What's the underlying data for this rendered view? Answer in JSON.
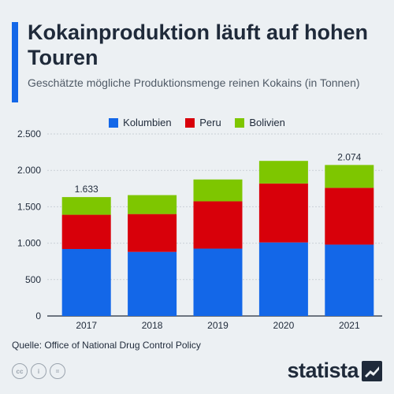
{
  "header": {
    "title": "Kokainproduktion läuft auf hohen Touren",
    "subtitle": "Geschätzte mögliche Produktionsmenge reinen Kokains (in Tonnen)"
  },
  "colors": {
    "accent": "#1367e8",
    "kolumbien": "#1367e8",
    "peru": "#d8000a",
    "bolivien": "#7ec600"
  },
  "chart_data": {
    "type": "bar",
    "stacked": true,
    "categories": [
      "2017",
      "2018",
      "2019",
      "2020",
      "2021"
    ],
    "series": [
      {
        "name": "Kolumbien",
        "color": "#1367e8",
        "values": [
          920,
          880,
          925,
          1010,
          980
        ]
      },
      {
        "name": "Peru",
        "color": "#d8000a",
        "values": [
          470,
          520,
          650,
          810,
          780
        ]
      },
      {
        "name": "Bolivien",
        "color": "#7ec600",
        "values": [
          243,
          260,
          300,
          310,
          314
        ]
      }
    ],
    "data_labels": [
      "1.633",
      "",
      "",
      "",
      "2.074"
    ],
    "ylim": [
      0,
      2500
    ],
    "yticks": [
      0,
      500,
      1000,
      1500,
      2000,
      2500
    ],
    "ytick_labels": [
      "0",
      "500",
      "1.000",
      "1.500",
      "2.000",
      "2.500"
    ],
    "grid": true,
    "legend_position": "top"
  },
  "legend": [
    {
      "label": "Kolumbien",
      "color": "#1367e8"
    },
    {
      "label": "Peru",
      "color": "#d8000a"
    },
    {
      "label": "Bolivien",
      "color": "#7ec600"
    }
  ],
  "footer": {
    "source": "Quelle: Office of National Drug Control Policy",
    "cc_icons": [
      "cc-icon",
      "by-icon",
      "nd-icon"
    ],
    "cc_texts": [
      "cc",
      "i",
      "="
    ],
    "brand": "statista"
  }
}
